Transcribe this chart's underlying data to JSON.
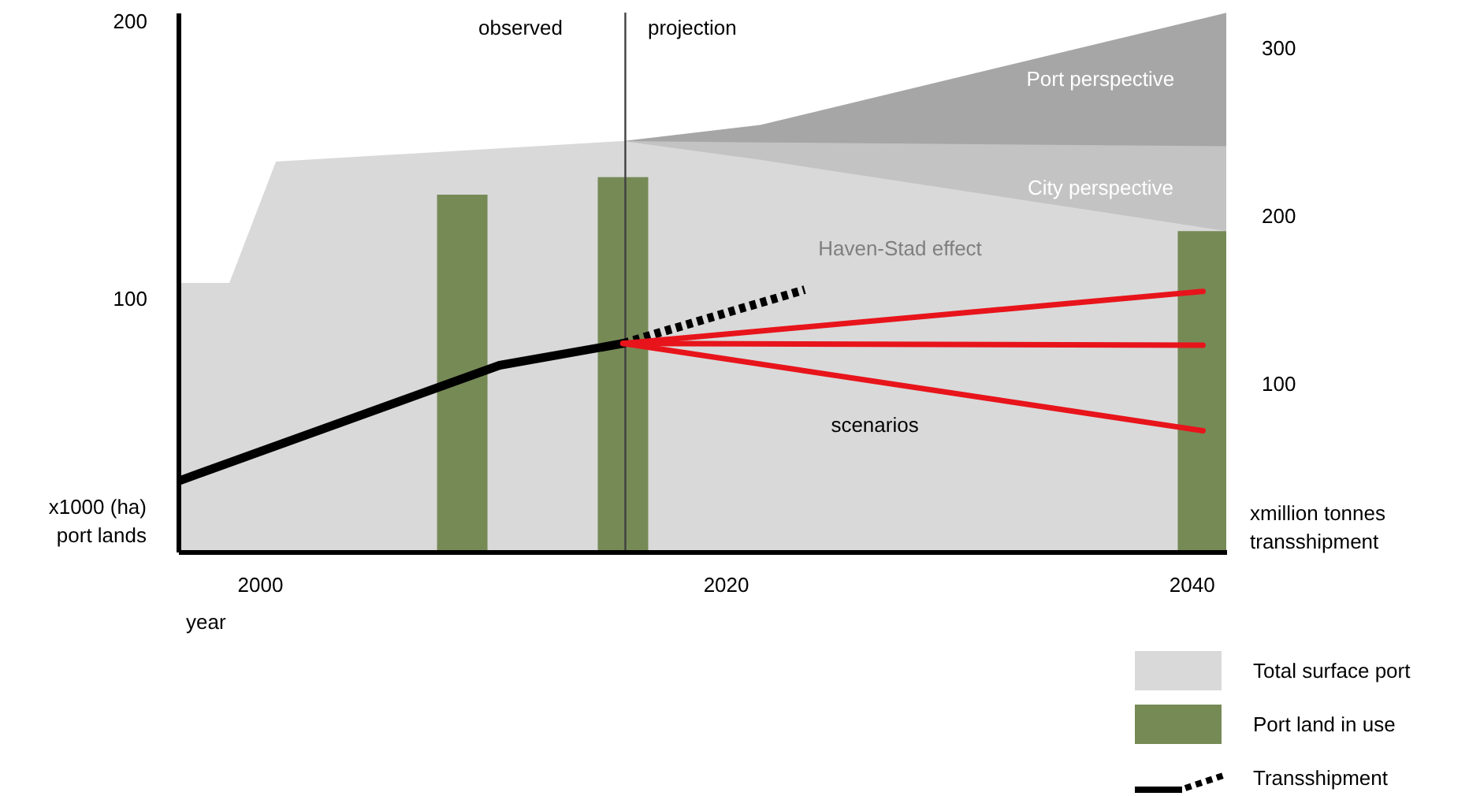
{
  "chart_data": {
    "type": "area",
    "xlabel": "year",
    "ylabel": "x1000 (ha)\nport lands",
    "y2label": "xmillion tonnes\ntransshipment",
    "x": [
      1996.5,
      1998.7,
      2000.7,
      2015.6,
      2021.5,
      2041.5
    ],
    "series": [
      {
        "name": "Port perspective",
        "color": "#a6a6a6",
        "x": [
          2015.6,
          2021.5,
          2041.5
        ],
        "values": [
          156.8,
          162.6,
          202.9
        ]
      },
      {
        "name": "City perspective",
        "color": "#c3c3c3",
        "x": [
          2015.6,
          2021.5,
          2041.5
        ],
        "values": [
          156.8,
          156.3,
          154.9
        ]
      },
      {
        "name": "Total surface port",
        "color": "#d9d9d9",
        "values": [
          105.7,
          105.7,
          149.4,
          156.8,
          150,
          124.4
        ]
      },
      {
        "name": "Port land in use",
        "type": "bar",
        "color": "#768a56",
        "x": [
          2008.7,
          2015.6,
          2040.5
        ],
        "values": [
          137.5,
          143.8,
          124.4
        ]
      },
      {
        "name": "Transshipment",
        "type": "line",
        "axis": "y2",
        "color": "#000000",
        "x": [
          1996.5,
          2010.3,
          2015.6
        ],
        "values": [
          42,
          111,
          124
        ]
      },
      {
        "type": "line",
        "axis": "y2",
        "line_style": "dotted",
        "color": "#000000",
        "x": [
          2015.6,
          2023.4
        ],
        "values": [
          124,
          156
        ]
      },
      {
        "type": "line",
        "axis": "y2",
        "color": "#e8141b",
        "x": [
          2015.6,
          2040.5
        ],
        "values": [
          124,
          155
        ]
      },
      {
        "type": "line",
        "axis": "y2",
        "color": "#e8141b",
        "x": [
          2015.6,
          2040.5
        ],
        "values": [
          124,
          123
        ]
      },
      {
        "type": "line",
        "axis": "y2",
        "color": "#e8141b",
        "x": [
          2015.6,
          2040.5
        ],
        "values": [
          124,
          72
        ]
      }
    ],
    "xlim": [
      1996.5,
      2041.5
    ],
    "xticks": [
      2000,
      2020,
      2040
    ],
    "ylim": [
      9,
      203
    ],
    "yticks": [
      100,
      200
    ],
    "y2lim": [
      0,
      321
    ],
    "y2ticks": [
      100,
      200,
      300
    ],
    "ref_lines": [
      {
        "axis": "x",
        "value": 2015.7,
        "color": "#404040"
      }
    ],
    "annotations": [
      "observed",
      "projection",
      "Haven-Stad effect",
      "scenarios"
    ],
    "legend": "bottom right",
    "grid": false
  }
}
